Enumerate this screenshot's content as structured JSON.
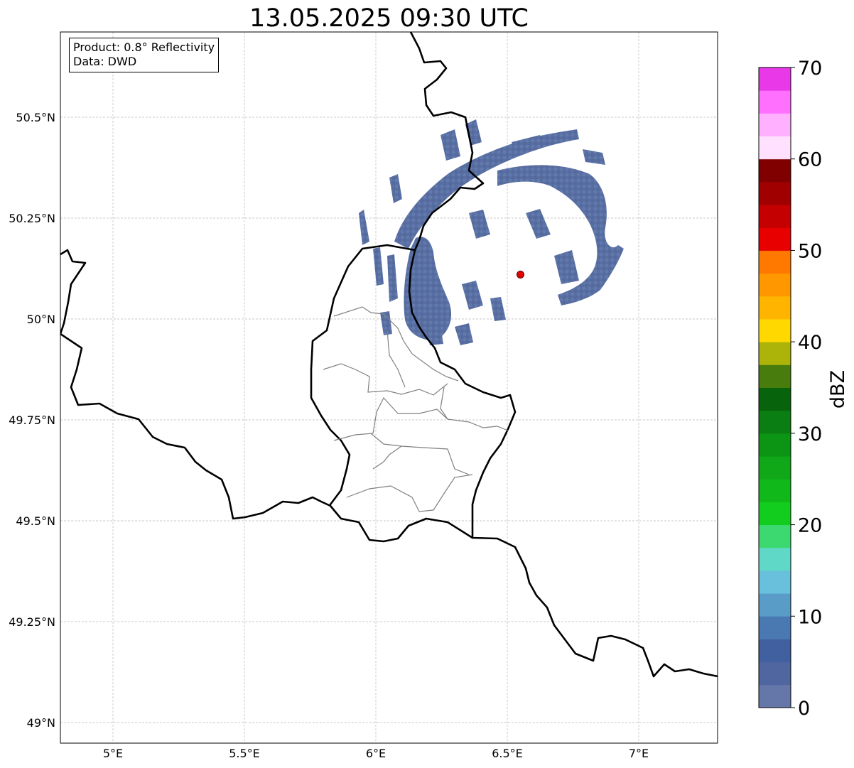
{
  "title": "13.05.2025 09:30 UTC",
  "info": {
    "product": "Product: 0.8° Reflectivity",
    "data": "Data: DWD"
  },
  "map": {
    "lon_range": [
      4.8,
      7.3
    ],
    "lat_range": [
      48.95,
      50.7
    ],
    "lon_ticks": [
      {
        "value": 5.0,
        "label": "5°E"
      },
      {
        "value": 5.5,
        "label": "5.5°E"
      },
      {
        "value": 6.0,
        "label": "6°E"
      },
      {
        "value": 6.5,
        "label": "6.5°E"
      },
      {
        "value": 7.0,
        "label": "7°E"
      }
    ],
    "lat_ticks": [
      {
        "value": 49.0,
        "label": "49°N"
      },
      {
        "value": 49.25,
        "label": "49.25°N"
      },
      {
        "value": 49.5,
        "label": "49.5°N"
      },
      {
        "value": 49.75,
        "label": "49.75°N"
      },
      {
        "value": 50.0,
        "label": "50°N"
      },
      {
        "value": 50.25,
        "label": "50.25°N"
      },
      {
        "value": 50.5,
        "label": "50.5°N"
      }
    ],
    "gridlines": true,
    "radar_site": {
      "lon": 6.55,
      "lat": 50.11,
      "color": "#e00000"
    },
    "echo_color": "#5068a0",
    "border_color": "#000000",
    "admin_border_color": "#808080"
  },
  "colorbar": {
    "label": "dBZ",
    "min": 0,
    "max": 70,
    "step": 2.5,
    "ticks": [
      0,
      10,
      20,
      30,
      40,
      50,
      60,
      70
    ],
    "colors": [
      "#6477a8",
      "#4f66a0",
      "#4060a0",
      "#4a78b0",
      "#5a9cc8",
      "#68c0dc",
      "#60d8c8",
      "#3cd870",
      "#12cc1e",
      "#10b81a",
      "#10a818",
      "#0c9414",
      "#0a7e12",
      "#08640c",
      "#487c0c",
      "#acb40a",
      "#ffd800",
      "#ffb400",
      "#ff9800",
      "#ff7800",
      "#e80000",
      "#c40000",
      "#a00000",
      "#800000",
      "#ffe0ff",
      "#ffb0ff",
      "#ff70ff",
      "#e838e8"
    ]
  }
}
